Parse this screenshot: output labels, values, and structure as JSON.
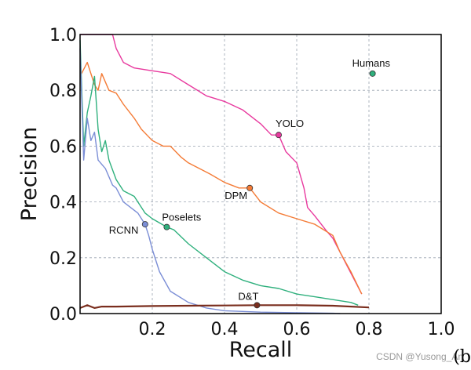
{
  "chart_data": {
    "type": "line",
    "xlabel": "Recall",
    "ylabel": "Precision",
    "xlim": [
      0.0,
      1.0
    ],
    "ylim": [
      0.0,
      1.0
    ],
    "xticks": [
      "0.2",
      "0.4",
      "0.6",
      "0.8",
      "1.0"
    ],
    "yticks": [
      "0.0",
      "0.2",
      "0.4",
      "0.6",
      "0.8",
      "1.0"
    ],
    "grid": true,
    "series": [
      {
        "name": "YOLO",
        "color": "#e8399e",
        "x": [
          0.0,
          0.09,
          0.1,
          0.12,
          0.15,
          0.2,
          0.25,
          0.3,
          0.35,
          0.4,
          0.45,
          0.5,
          0.53,
          0.55,
          0.57,
          0.6,
          0.62,
          0.63,
          0.65,
          0.68,
          0.7,
          0.72,
          0.74,
          0.76,
          0.78
        ],
        "y": [
          1.0,
          1.0,
          0.95,
          0.9,
          0.88,
          0.87,
          0.86,
          0.82,
          0.78,
          0.76,
          0.73,
          0.68,
          0.64,
          0.64,
          0.58,
          0.54,
          0.45,
          0.38,
          0.35,
          0.3,
          0.27,
          0.22,
          0.17,
          0.12,
          0.07
        ],
        "point": [
          0.55,
          0.64
        ]
      },
      {
        "name": "DPM",
        "color": "#f47b36",
        "x": [
          0.0,
          0.02,
          0.04,
          0.05,
          0.06,
          0.08,
          0.1,
          0.12,
          0.15,
          0.17,
          0.2,
          0.23,
          0.25,
          0.28,
          0.3,
          0.33,
          0.36,
          0.4,
          0.44,
          0.47,
          0.5,
          0.55,
          0.6,
          0.65,
          0.7,
          0.72,
          0.75,
          0.78
        ],
        "y": [
          0.85,
          0.9,
          0.82,
          0.8,
          0.86,
          0.8,
          0.79,
          0.75,
          0.7,
          0.66,
          0.62,
          0.6,
          0.6,
          0.56,
          0.54,
          0.52,
          0.5,
          0.47,
          0.45,
          0.45,
          0.4,
          0.36,
          0.34,
          0.32,
          0.28,
          0.22,
          0.15,
          0.07
        ],
        "point": [
          0.47,
          0.45
        ]
      },
      {
        "name": "Poselets",
        "color": "#2fb07d",
        "x": [
          0.0,
          0.01,
          0.02,
          0.03,
          0.04,
          0.05,
          0.06,
          0.07,
          0.08,
          0.1,
          0.12,
          0.15,
          0.18,
          0.2,
          0.24,
          0.26,
          0.3,
          0.35,
          0.4,
          0.45,
          0.5,
          0.55,
          0.6,
          0.65,
          0.7,
          0.75,
          0.77
        ],
        "y": [
          0.98,
          0.6,
          0.72,
          0.78,
          0.85,
          0.66,
          0.58,
          0.62,
          0.55,
          0.48,
          0.44,
          0.42,
          0.36,
          0.34,
          0.31,
          0.3,
          0.25,
          0.2,
          0.15,
          0.12,
          0.1,
          0.09,
          0.07,
          0.06,
          0.05,
          0.04,
          0.03
        ],
        "point": [
          0.24,
          0.31
        ]
      },
      {
        "name": "RCNN",
        "color": "#7b8ed6",
        "x": [
          0.0,
          0.01,
          0.02,
          0.03,
          0.04,
          0.05,
          0.07,
          0.09,
          0.1,
          0.12,
          0.14,
          0.16,
          0.18,
          0.19,
          0.2,
          0.22,
          0.25,
          0.3,
          0.35,
          0.4,
          0.5,
          0.6,
          0.7,
          0.72
        ],
        "y": [
          0.95,
          0.55,
          0.7,
          0.62,
          0.65,
          0.55,
          0.52,
          0.46,
          0.45,
          0.4,
          0.38,
          0.36,
          0.32,
          0.28,
          0.23,
          0.15,
          0.08,
          0.04,
          0.02,
          0.01,
          0.005,
          0.003,
          0.001,
          0.0
        ],
        "point": [
          0.18,
          0.32
        ]
      },
      {
        "name": "D&T",
        "color": "#7a2e1e",
        "x": [
          0.0,
          0.01,
          0.02,
          0.03,
          0.04,
          0.06,
          0.1,
          0.2,
          0.3,
          0.4,
          0.5,
          0.6,
          0.7,
          0.8
        ],
        "y": [
          0.02,
          0.025,
          0.03,
          0.025,
          0.02,
          0.025,
          0.025,
          0.027,
          0.028,
          0.029,
          0.03,
          0.03,
          0.028,
          0.022
        ],
        "point": [
          0.49,
          0.03
        ]
      }
    ],
    "annotations": [
      {
        "text": "Humans",
        "point": [
          0.81,
          0.86
        ],
        "color": "#2fb07d"
      }
    ]
  },
  "watermark": "CSDN @Yusong_An",
  "corner_text": "(b"
}
